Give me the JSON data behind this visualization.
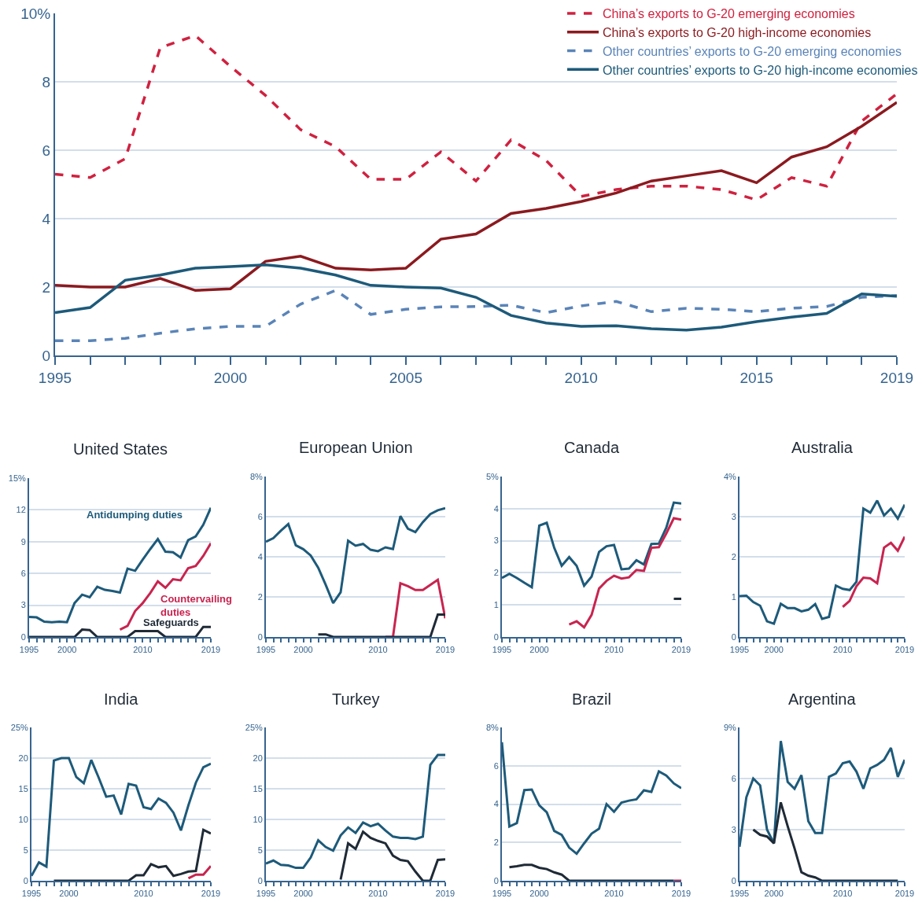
{
  "chart_data": [
    {
      "type": "line",
      "x": [
        1995,
        1996,
        1997,
        1998,
        1999,
        2000,
        2001,
        2002,
        2003,
        2004,
        2005,
        2006,
        2007,
        2008,
        2009,
        2010,
        2011,
        2012,
        2013,
        2014,
        2015,
        2016,
        2017,
        2018,
        2019
      ],
      "xlim": [
        1995,
        2019
      ],
      "xticks": [
        1995,
        {
          "value": 1996,
          "label": null
        },
        {
          "value": 1997,
          "label": null
        },
        {
          "value": 1998,
          "label": null
        },
        {
          "value": 1999,
          "label": null
        },
        2000,
        {
          "value": 2001,
          "label": null
        },
        {
          "value": 2002,
          "label": null
        },
        {
          "value": 2003,
          "label": null
        },
        {
          "value": 2004,
          "label": null
        },
        2005,
        {
          "value": 2006,
          "label": null
        },
        {
          "value": 2007,
          "label": null
        },
        {
          "value": 2008,
          "label": null
        },
        {
          "value": 2009,
          "label": null
        },
        2010,
        {
          "value": 2011,
          "label": null
        },
        {
          "value": 2012,
          "label": null
        },
        {
          "value": 2013,
          "label": null
        },
        {
          "value": 2014,
          "label": null
        },
        2015,
        {
          "value": 2016,
          "label": null
        },
        {
          "value": 2017,
          "label": null
        },
        {
          "value": 2018,
          "label": null
        },
        2019
      ],
      "ylim": [
        0,
        10
      ],
      "yticks": [
        0,
        2,
        4,
        6,
        8,
        {
          "value": 10,
          "label": "10%"
        }
      ],
      "grid": "y",
      "legend": "top right",
      "marker": "none",
      "series": [
        {
          "name": "China’s exports to G-20 emerging economies",
          "color": "#d0213f",
          "line_style": "dashed",
          "values": [
            5.3,
            5.2,
            5.75,
            9.0,
            9.35,
            8.45,
            7.6,
            6.6,
            6.1,
            5.15,
            5.15,
            5.95,
            5.1,
            6.3,
            5.7,
            4.65,
            4.85,
            4.95,
            4.95,
            4.85,
            4.55,
            5.2,
            4.95,
            6.85,
            7.65
          ]
        },
        {
          "name": "China’s exports to G-20 high-income economies",
          "color": "#8b1a1f",
          "line_style": "solid",
          "values": [
            2.05,
            2.0,
            2.0,
            2.25,
            1.9,
            1.95,
            2.75,
            2.9,
            2.55,
            2.5,
            2.55,
            3.4,
            3.55,
            4.15,
            4.3,
            4.5,
            4.75,
            5.1,
            5.25,
            5.4,
            5.05,
            5.8,
            6.1,
            6.7,
            7.4
          ]
        },
        {
          "name": "Other countries’ exports to G-20 emerging economies",
          "color": "#5a84b8",
          "line_style": "dashed",
          "values": [
            0.43,
            0.43,
            0.5,
            0.65,
            0.78,
            0.85,
            0.85,
            1.5,
            1.9,
            1.2,
            1.35,
            1.42,
            1.43,
            1.47,
            1.25,
            1.45,
            1.58,
            1.28,
            1.38,
            1.35,
            1.28,
            1.38,
            1.43,
            1.7,
            1.75
          ]
        },
        {
          "name": "Other countries’ exports to G-20 high-income economies",
          "color": "#1d5a7a",
          "line_style": "solid",
          "values": [
            1.25,
            1.4,
            2.2,
            2.35,
            2.55,
            2.6,
            2.65,
            2.55,
            2.35,
            2.05,
            2.0,
            1.97,
            1.7,
            1.17,
            0.95,
            0.85,
            0.87,
            0.78,
            0.74,
            0.83,
            0.99,
            1.12,
            1.23,
            1.8,
            1.73
          ]
        }
      ]
    },
    {
      "type": "line",
      "title": "United States",
      "x": [
        1995,
        1996,
        1997,
        1998,
        1999,
        2000,
        2001,
        2002,
        2003,
        2004,
        2005,
        2006,
        2007,
        2008,
        2009,
        2010,
        2011,
        2012,
        2013,
        2014,
        2015,
        2016,
        2017,
        2018,
        2019
      ],
      "xlim": [
        1995,
        2019
      ],
      "xticks": [
        1995,
        {
          "value": 1996,
          "label": null
        },
        {
          "value": 1997,
          "label": null
        },
        {
          "value": 1998,
          "label": null
        },
        {
          "value": 1999,
          "label": null
        },
        2000,
        {
          "value": 2001,
          "label": null
        },
        {
          "value": 2002,
          "label": null
        },
        {
          "value": 2003,
          "label": null
        },
        {
          "value": 2004,
          "label": null
        },
        {
          "value": 2005,
          "label": null
        },
        {
          "value": 2006,
          "label": null
        },
        {
          "value": 2007,
          "label": null
        },
        {
          "value": 2008,
          "label": null
        },
        {
          "value": 2009,
          "label": null
        },
        2010,
        {
          "value": 2011,
          "label": null
        },
        {
          "value": 2012,
          "label": null
        },
        {
          "value": 2013,
          "label": null
        },
        {
          "value": 2014,
          "label": null
        },
        {
          "value": 2015,
          "label": null
        },
        {
          "value": 2016,
          "label": null
        },
        {
          "value": 2017,
          "label": null
        },
        {
          "value": 2018,
          "label": null
        },
        2019
      ],
      "ylim": [
        0,
        15
      ],
      "yticks": [
        0,
        3,
        6,
        9,
        12,
        {
          "value": 15,
          "label": "15%"
        }
      ],
      "grid": "y",
      "marker": "none",
      "series": [
        {
          "name": "Antidumping duties",
          "color": "#1d5a7a",
          "values": [
            1.9,
            1.85,
            1.45,
            1.4,
            1.45,
            1.4,
            3.2,
            4.0,
            3.75,
            4.75,
            4.45,
            4.35,
            4.2,
            6.45,
            6.25,
            7.3,
            8.3,
            9.25,
            8.05,
            8.0,
            7.5,
            9.15,
            9.5,
            10.6,
            12.2
          ]
        },
        {
          "name": "Countervailing duties",
          "color": "#c8244f",
          "values": [
            null,
            null,
            null,
            null,
            null,
            null,
            null,
            null,
            null,
            null,
            null,
            null,
            0.7,
            1.05,
            2.45,
            3.2,
            4.15,
            5.25,
            4.65,
            5.45,
            5.35,
            6.5,
            6.7,
            7.65,
            8.85
          ]
        },
        {
          "name": "Safeguards",
          "color": "#1f2a36",
          "values": [
            0,
            0,
            0,
            0,
            0,
            0,
            0,
            0.7,
            0.65,
            0,
            0,
            0,
            0,
            0,
            0.55,
            0.55,
            0.55,
            0.55,
            0,
            0,
            0,
            0,
            0,
            0.95,
            0.95
          ]
        }
      ]
    },
    {
      "type": "line",
      "title": "European Union",
      "x": [
        1995,
        1996,
        1997,
        1998,
        1999,
        2000,
        2001,
        2002,
        2003,
        2004,
        2005,
        2006,
        2007,
        2008,
        2009,
        2010,
        2011,
        2012,
        2013,
        2014,
        2015,
        2016,
        2017,
        2018,
        2019
      ],
      "xlim": [
        1995,
        2019
      ],
      "xticks": [
        1995,
        {
          "value": 1996,
          "label": null
        },
        {
          "value": 1997,
          "label": null
        },
        {
          "value": 1998,
          "label": null
        },
        {
          "value": 1999,
          "label": null
        },
        2000,
        {
          "value": 2001,
          "label": null
        },
        {
          "value": 2002,
          "label": null
        },
        {
          "value": 2003,
          "label": null
        },
        {
          "value": 2004,
          "label": null
        },
        {
          "value": 2005,
          "label": null
        },
        {
          "value": 2006,
          "label": null
        },
        {
          "value": 2007,
          "label": null
        },
        {
          "value": 2008,
          "label": null
        },
        {
          "value": 2009,
          "label": null
        },
        2010,
        {
          "value": 2011,
          "label": null
        },
        {
          "value": 2012,
          "label": null
        },
        {
          "value": 2013,
          "label": null
        },
        {
          "value": 2014,
          "label": null
        },
        {
          "value": 2015,
          "label": null
        },
        {
          "value": 2016,
          "label": null
        },
        {
          "value": 2017,
          "label": null
        },
        {
          "value": 2018,
          "label": null
        },
        2019
      ],
      "ylim": [
        0,
        8
      ],
      "yticks": [
        0,
        2,
        4,
        6,
        {
          "value": 8,
          "label": "8%"
        }
      ],
      "grid": "y",
      "marker": "none",
      "series": [
        {
          "color": "#1d5a7a",
          "values": [
            4.75,
            4.93,
            5.3,
            5.63,
            4.57,
            4.38,
            4.06,
            3.45,
            2.6,
            1.69,
            2.23,
            4.8,
            4.55,
            4.64,
            4.35,
            4.28,
            4.47,
            4.38,
            6.03,
            5.4,
            5.23,
            5.73,
            6.13,
            6.32,
            6.42
          ]
        },
        {
          "color": "#c8244f",
          "values": [
            null,
            null,
            null,
            null,
            null,
            null,
            null,
            null,
            null,
            null,
            null,
            null,
            null,
            null,
            null,
            null,
            0,
            0,
            2.68,
            2.53,
            2.34,
            2.34,
            2.6,
            2.85,
            0.93
          ]
        },
        {
          "color": "#1f2a36",
          "values": [
            null,
            null,
            null,
            null,
            null,
            null,
            null,
            0.13,
            0.13,
            0,
            0,
            0,
            0,
            0,
            0,
            0,
            0,
            0,
            0,
            0,
            0,
            0,
            0,
            1.12,
            1.12
          ]
        }
      ]
    },
    {
      "type": "line",
      "title": "Canada",
      "x": [
        1995,
        1996,
        1997,
        1998,
        1999,
        2000,
        2001,
        2002,
        2003,
        2004,
        2005,
        2006,
        2007,
        2008,
        2009,
        2010,
        2011,
        2012,
        2013,
        2014,
        2015,
        2016,
        2017,
        2018,
        2019
      ],
      "xlim": [
        1995,
        2019
      ],
      "xticks": [
        1995,
        {
          "value": 1996,
          "label": null
        },
        {
          "value": 1997,
          "label": null
        },
        {
          "value": 1998,
          "label": null
        },
        {
          "value": 1999,
          "label": null
        },
        2000,
        {
          "value": 2001,
          "label": null
        },
        {
          "value": 2002,
          "label": null
        },
        {
          "value": 2003,
          "label": null
        },
        {
          "value": 2004,
          "label": null
        },
        {
          "value": 2005,
          "label": null
        },
        {
          "value": 2006,
          "label": null
        },
        {
          "value": 2007,
          "label": null
        },
        {
          "value": 2008,
          "label": null
        },
        {
          "value": 2009,
          "label": null
        },
        2010,
        {
          "value": 2011,
          "label": null
        },
        {
          "value": 2012,
          "label": null
        },
        {
          "value": 2013,
          "label": null
        },
        {
          "value": 2014,
          "label": null
        },
        {
          "value": 2015,
          "label": null
        },
        {
          "value": 2016,
          "label": null
        },
        {
          "value": 2017,
          "label": null
        },
        {
          "value": 2018,
          "label": null
        },
        2019
      ],
      "ylim": [
        0,
        5
      ],
      "yticks": [
        0,
        1,
        2,
        3,
        4,
        {
          "value": 5,
          "label": "5%"
        }
      ],
      "grid": "y",
      "marker": "none",
      "series": [
        {
          "color": "#1d5a7a",
          "values": [
            1.84,
            1.97,
            1.84,
            1.69,
            1.55,
            3.47,
            3.56,
            2.78,
            2.22,
            2.49,
            2.22,
            1.6,
            1.88,
            2.65,
            2.83,
            2.87,
            2.11,
            2.13,
            2.39,
            2.26,
            2.9,
            2.91,
            3.41,
            4.19,
            4.16
          ]
        },
        {
          "color": "#c8244f",
          "values": [
            null,
            null,
            null,
            null,
            null,
            null,
            null,
            null,
            null,
            0.39,
            0.49,
            0.3,
            0.69,
            1.51,
            1.75,
            1.91,
            1.82,
            1.86,
            2.09,
            2.06,
            2.78,
            2.8,
            3.23,
            3.7,
            3.66
          ]
        },
        {
          "color": "#1f2a36",
          "values": [
            null,
            null,
            null,
            null,
            null,
            null,
            null,
            null,
            null,
            null,
            null,
            null,
            null,
            null,
            null,
            null,
            null,
            null,
            null,
            null,
            null,
            null,
            null,
            1.19,
            1.19
          ]
        }
      ]
    },
    {
      "type": "line",
      "title": "Australia",
      "x": [
        1995,
        1996,
        1997,
        1998,
        1999,
        2000,
        2001,
        2002,
        2003,
        2004,
        2005,
        2006,
        2007,
        2008,
        2009,
        2010,
        2011,
        2012,
        2013,
        2014,
        2015,
        2016,
        2017,
        2018,
        2019
      ],
      "xlim": [
        1995,
        2019
      ],
      "xticks": [
        1995,
        {
          "value": 1996,
          "label": null
        },
        {
          "value": 1997,
          "label": null
        },
        {
          "value": 1998,
          "label": null
        },
        {
          "value": 1999,
          "label": null
        },
        2000,
        {
          "value": 2001,
          "label": null
        },
        {
          "value": 2002,
          "label": null
        },
        {
          "value": 2003,
          "label": null
        },
        {
          "value": 2004,
          "label": null
        },
        {
          "value": 2005,
          "label": null
        },
        {
          "value": 2006,
          "label": null
        },
        {
          "value": 2007,
          "label": null
        },
        {
          "value": 2008,
          "label": null
        },
        {
          "value": 2009,
          "label": null
        },
        2010,
        {
          "value": 2011,
          "label": null
        },
        {
          "value": 2012,
          "label": null
        },
        {
          "value": 2013,
          "label": null
        },
        {
          "value": 2014,
          "label": null
        },
        {
          "value": 2015,
          "label": null
        },
        {
          "value": 2016,
          "label": null
        },
        {
          "value": 2017,
          "label": null
        },
        {
          "value": 2018,
          "label": null
        },
        2019
      ],
      "ylim": [
        0,
        4
      ],
      "yticks": [
        0,
        1,
        2,
        3,
        {
          "value": 4,
          "label": "4%"
        }
      ],
      "grid": "y",
      "marker": "none",
      "series": [
        {
          "color": "#1d5a7a",
          "values": [
            1.02,
            1.03,
            0.87,
            0.78,
            0.39,
            0.33,
            0.83,
            0.72,
            0.72,
            0.64,
            0.68,
            0.82,
            0.45,
            0.5,
            1.28,
            1.2,
            1.17,
            1.38,
            3.2,
            3.1,
            3.4,
            3.03,
            3.2,
            2.95,
            3.3
          ]
        },
        {
          "color": "#c8244f",
          "values": [
            null,
            null,
            null,
            null,
            null,
            null,
            null,
            null,
            null,
            null,
            null,
            null,
            null,
            null,
            null,
            0.75,
            0.9,
            1.27,
            1.48,
            1.46,
            1.34,
            2.23,
            2.35,
            2.15,
            2.5
          ]
        }
      ]
    },
    {
      "type": "line",
      "title": "India",
      "x": [
        1995,
        1996,
        1997,
        1998,
        1999,
        2000,
        2001,
        2002,
        2003,
        2004,
        2005,
        2006,
        2007,
        2008,
        2009,
        2010,
        2011,
        2012,
        2013,
        2014,
        2015,
        2016,
        2017,
        2018,
        2019
      ],
      "xlim": [
        1995,
        2019
      ],
      "xticks": [
        1995,
        {
          "value": 1996,
          "label": null
        },
        {
          "value": 1997,
          "label": null
        },
        {
          "value": 1998,
          "label": null
        },
        {
          "value": 1999,
          "label": null
        },
        2000,
        {
          "value": 2001,
          "label": null
        },
        {
          "value": 2002,
          "label": null
        },
        {
          "value": 2003,
          "label": null
        },
        {
          "value": 2004,
          "label": null
        },
        {
          "value": 2005,
          "label": null
        },
        {
          "value": 2006,
          "label": null
        },
        {
          "value": 2007,
          "label": null
        },
        {
          "value": 2008,
          "label": null
        },
        {
          "value": 2009,
          "label": null
        },
        2010,
        {
          "value": 2011,
          "label": null
        },
        {
          "value": 2012,
          "label": null
        },
        {
          "value": 2013,
          "label": null
        },
        {
          "value": 2014,
          "label": null
        },
        {
          "value": 2015,
          "label": null
        },
        {
          "value": 2016,
          "label": null
        },
        {
          "value": 2017,
          "label": null
        },
        {
          "value": 2018,
          "label": null
        },
        2019
      ],
      "ylim": [
        0,
        25
      ],
      "yticks": [
        0,
        5,
        10,
        15,
        20,
        {
          "value": 25,
          "label": "25%"
        }
      ],
      "grid": "y",
      "marker": "none",
      "series": [
        {
          "color": "#1d5a7a",
          "values": [
            0.8,
            3.0,
            2.3,
            19.6,
            20.0,
            20.0,
            16.9,
            15.9,
            19.7,
            16.8,
            13.7,
            13.9,
            10.8,
            15.8,
            15.5,
            12.0,
            11.7,
            13.4,
            12.7,
            11.1,
            8.2,
            12.3,
            16.0,
            18.5,
            19.1
          ]
        },
        {
          "color": "#c8244f",
          "values": [
            null,
            null,
            null,
            null,
            null,
            null,
            null,
            null,
            null,
            null,
            null,
            null,
            null,
            null,
            null,
            null,
            null,
            null,
            null,
            null,
            null,
            0.4,
            1.0,
            1.0,
            2.4
          ]
        },
        {
          "color": "#1f2a36",
          "values": [
            null,
            null,
            null,
            0,
            0,
            0,
            0,
            0,
            0,
            0,
            0,
            0,
            0,
            0,
            0.9,
            0.9,
            2.7,
            2.2,
            2.4,
            0.8,
            1.1,
            1.5,
            1.6,
            8.3,
            7.7
          ]
        }
      ]
    },
    {
      "type": "line",
      "title": "Turkey",
      "x": [
        1995,
        1996,
        1997,
        1998,
        1999,
        2000,
        2001,
        2002,
        2003,
        2004,
        2005,
        2006,
        2007,
        2008,
        2009,
        2010,
        2011,
        2012,
        2013,
        2014,
        2015,
        2016,
        2017,
        2018,
        2019
      ],
      "xlim": [
        1995,
        2019
      ],
      "xticks": [
        1995,
        {
          "value": 1996,
          "label": null
        },
        {
          "value": 1997,
          "label": null
        },
        {
          "value": 1998,
          "label": null
        },
        {
          "value": 1999,
          "label": null
        },
        2000,
        {
          "value": 2001,
          "label": null
        },
        {
          "value": 2002,
          "label": null
        },
        {
          "value": 2003,
          "label": null
        },
        {
          "value": 2004,
          "label": null
        },
        {
          "value": 2005,
          "label": null
        },
        {
          "value": 2006,
          "label": null
        },
        {
          "value": 2007,
          "label": null
        },
        {
          "value": 2008,
          "label": null
        },
        {
          "value": 2009,
          "label": null
        },
        2010,
        {
          "value": 2011,
          "label": null
        },
        {
          "value": 2012,
          "label": null
        },
        {
          "value": 2013,
          "label": null
        },
        {
          "value": 2014,
          "label": null
        },
        {
          "value": 2015,
          "label": null
        },
        {
          "value": 2016,
          "label": null
        },
        {
          "value": 2017,
          "label": null
        },
        {
          "value": 2018,
          "label": null
        },
        2019
      ],
      "ylim": [
        0,
        25
      ],
      "yticks": [
        0,
        5,
        10,
        15,
        20,
        {
          "value": 25,
          "label": "25%"
        }
      ],
      "grid": "y",
      "marker": "none",
      "series": [
        {
          "color": "#1d5a7a",
          "values": [
            2.8,
            3.3,
            2.6,
            2.5,
            2.1,
            2.1,
            3.8,
            6.6,
            5.5,
            4.9,
            7.4,
            8.7,
            7.8,
            9.5,
            8.9,
            9.3,
            8.2,
            7.2,
            7.0,
            7.0,
            6.8,
            7.2,
            18.9,
            20.5,
            20.5
          ]
        },
        {
          "color": "#1f2a36",
          "values": [
            null,
            null,
            null,
            null,
            null,
            null,
            null,
            null,
            null,
            null,
            0.2,
            6.1,
            5.2,
            8.0,
            7.0,
            6.5,
            6.1,
            4.1,
            3.4,
            3.2,
            1.5,
            0,
            0,
            3.4,
            3.5
          ]
        }
      ]
    },
    {
      "type": "line",
      "title": "Brazil",
      "x": [
        1995,
        1996,
        1997,
        1998,
        1999,
        2000,
        2001,
        2002,
        2003,
        2004,
        2005,
        2006,
        2007,
        2008,
        2009,
        2010,
        2011,
        2012,
        2013,
        2014,
        2015,
        2016,
        2017,
        2018,
        2019
      ],
      "xlim": [
        1995,
        2019
      ],
      "xticks": [
        1995,
        {
          "value": 1996,
          "label": null
        },
        {
          "value": 1997,
          "label": null
        },
        {
          "value": 1998,
          "label": null
        },
        {
          "value": 1999,
          "label": null
        },
        2000,
        {
          "value": 2001,
          "label": null
        },
        {
          "value": 2002,
          "label": null
        },
        {
          "value": 2003,
          "label": null
        },
        {
          "value": 2004,
          "label": null
        },
        {
          "value": 2005,
          "label": null
        },
        {
          "value": 2006,
          "label": null
        },
        {
          "value": 2007,
          "label": null
        },
        {
          "value": 2008,
          "label": null
        },
        {
          "value": 2009,
          "label": null
        },
        2010,
        {
          "value": 2011,
          "label": null
        },
        {
          "value": 2012,
          "label": null
        },
        {
          "value": 2013,
          "label": null
        },
        {
          "value": 2014,
          "label": null
        },
        {
          "value": 2015,
          "label": null
        },
        {
          "value": 2016,
          "label": null
        },
        {
          "value": 2017,
          "label": null
        },
        {
          "value": 2018,
          "label": null
        },
        2019
      ],
      "ylim": [
        0,
        8
      ],
      "yticks": [
        0,
        2,
        4,
        6,
        {
          "value": 8,
          "label": "8%"
        }
      ],
      "grid": "y",
      "marker": "none",
      "series": [
        {
          "color": "#1d5a7a",
          "values": [
            7.23,
            2.83,
            3.01,
            4.73,
            4.76,
            3.93,
            3.57,
            2.6,
            2.39,
            1.73,
            1.41,
            1.95,
            2.46,
            2.72,
            4.0,
            3.6,
            4.08,
            4.18,
            4.25,
            4.72,
            4.64,
            5.71,
            5.49,
            5.08,
            4.83
          ]
        },
        {
          "color": "#1f2a36",
          "values": [
            null,
            0.71,
            0.76,
            0.83,
            0.83,
            0.68,
            0.61,
            0.44,
            0.32,
            0,
            0,
            0,
            0,
            0,
            0,
            0,
            0,
            0,
            0,
            0,
            0,
            0,
            0,
            0,
            null
          ]
        },
        {
          "color": "#c8244f",
          "values": [
            null,
            null,
            null,
            null,
            null,
            null,
            null,
            null,
            null,
            null,
            null,
            null,
            null,
            null,
            null,
            null,
            null,
            null,
            null,
            null,
            null,
            null,
            null,
            0,
            0
          ]
        }
      ]
    },
    {
      "type": "line",
      "title": "Argentina",
      "x": [
        1995,
        1996,
        1997,
        1998,
        1999,
        2000,
        2001,
        2002,
        2003,
        2004,
        2005,
        2006,
        2007,
        2008,
        2009,
        2010,
        2011,
        2012,
        2013,
        2014,
        2015,
        2016,
        2017,
        2018,
        2019
      ],
      "xlim": [
        1995,
        2019
      ],
      "xticks": [
        1995,
        {
          "value": 1996,
          "label": null
        },
        {
          "value": 1997,
          "label": null
        },
        {
          "value": 1998,
          "label": null
        },
        {
          "value": 1999,
          "label": null
        },
        2000,
        {
          "value": 2001,
          "label": null
        },
        {
          "value": 2002,
          "label": null
        },
        {
          "value": 2003,
          "label": null
        },
        {
          "value": 2004,
          "label": null
        },
        {
          "value": 2005,
          "label": null
        },
        {
          "value": 2006,
          "label": null
        },
        {
          "value": 2007,
          "label": null
        },
        {
          "value": 2008,
          "label": null
        },
        {
          "value": 2009,
          "label": null
        },
        2010,
        {
          "value": 2011,
          "label": null
        },
        {
          "value": 2012,
          "label": null
        },
        {
          "value": 2013,
          "label": null
        },
        {
          "value": 2014,
          "label": null
        },
        {
          "value": 2015,
          "label": null
        },
        {
          "value": 2016,
          "label": null
        },
        {
          "value": 2017,
          "label": null
        },
        {
          "value": 2018,
          "label": null
        },
        2019
      ],
      "ylim": [
        0,
        9
      ],
      "yticks": [
        0,
        3,
        6,
        {
          "value": 9,
          "label": "9%"
        }
      ],
      "grid": "y",
      "marker": "none",
      "series": [
        {
          "color": "#1d5a7a",
          "values": [
            2.0,
            4.9,
            6.0,
            5.6,
            3.0,
            2.2,
            8.2,
            5.8,
            5.4,
            6.2,
            3.5,
            2.8,
            2.8,
            6.1,
            6.3,
            6.9,
            7.0,
            6.4,
            5.4,
            6.6,
            6.8,
            7.1,
            7.8,
            6.1,
            7.1
          ]
        },
        {
          "color": "#1f2a36",
          "values": [
            null,
            null,
            3.0,
            2.7,
            2.6,
            2.2,
            4.6,
            3.2,
            1.9,
            0.5,
            0.3,
            0.2,
            0,
            0,
            0,
            0,
            0,
            0,
            0,
            0,
            0,
            0,
            0,
            0,
            null
          ]
        }
      ]
    }
  ]
}
